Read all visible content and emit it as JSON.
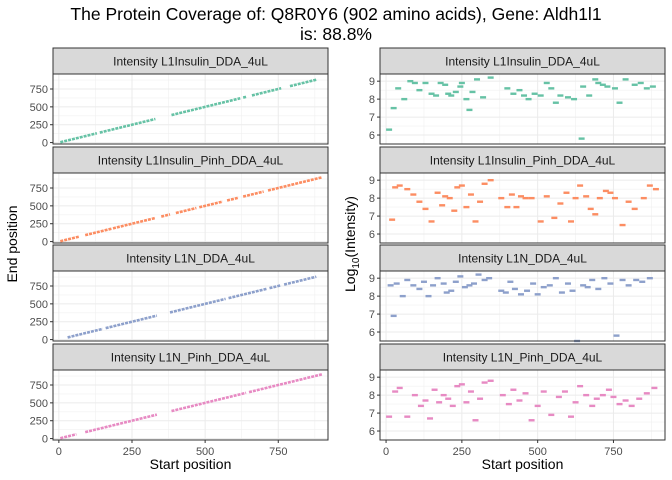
{
  "title": {
    "line1": "The Protein Coverage of: Q8R0Y6 (902 amino acids), Gene: Aldh1l1",
    "line2": "is: 88.8%"
  },
  "colors": [
    "#66c2a5",
    "#fc8d62",
    "#8da0cb",
    "#e78ac3"
  ],
  "chart_data": [
    {
      "type": "scatter",
      "panel": "left",
      "xlabel": "Start position",
      "ylabel": "End position",
      "xlim": [
        -20,
        920
      ],
      "ylim": [
        -20,
        960
      ],
      "xticks": [
        0,
        250,
        500,
        750
      ],
      "yticks": [
        0,
        250,
        500,
        750
      ],
      "grid": true,
      "facets": [
        {
          "strip": "Intensity L1Insulin_DDA_4uL",
          "segments": [
            [
              5,
              130
            ],
            [
              140,
              330
            ],
            [
              385,
              620
            ],
            [
              630,
              640
            ],
            [
              660,
              760
            ],
            [
              790,
              880
            ]
          ]
        },
        {
          "strip": "Intensity L1Insulin_Pinh_DDA_4uL",
          "segments": [
            [
              5,
              70
            ],
            [
              90,
              180
            ],
            [
              185,
              330
            ],
            [
              350,
              380
            ],
            [
              400,
              470
            ],
            [
              480,
              560
            ],
            [
              575,
              615
            ],
            [
              630,
              700
            ],
            [
              715,
              900
            ]
          ]
        },
        {
          "strip": "Intensity L1N_DDA_4uL",
          "segments": [
            [
              30,
              150
            ],
            [
              160,
              335
            ],
            [
              380,
              570
            ],
            [
              580,
              710
            ],
            [
              720,
              760
            ],
            [
              770,
              880
            ]
          ]
        },
        {
          "strip": "Intensity L1N_Pinh_DDA_4uL",
          "segments": [
            [
              5,
              60
            ],
            [
              90,
              335
            ],
            [
              385,
              640
            ],
            [
              650,
              900
            ]
          ]
        }
      ]
    },
    {
      "type": "scatter",
      "panel": "right",
      "xlabel": "Start position",
      "ylabel": "Log10(Intensity)",
      "ylabel_base": "Log",
      "ylabel_sub": "10",
      "ylabel_rest": "(Intensity)",
      "xlim": [
        -20,
        920
      ],
      "ylim": [
        5.5,
        9.4
      ],
      "xticks": [
        0,
        250,
        500,
        750
      ],
      "yticks": [
        6,
        7,
        8,
        9
      ],
      "grid": true,
      "facets": [
        {
          "strip": "Intensity L1Insulin_DDA_4uL",
          "points": [
            [
              10,
              6.3
            ],
            [
              25,
              7.5
            ],
            [
              40,
              8.6
            ],
            [
              60,
              8.0
            ],
            [
              80,
              9.0
            ],
            [
              95,
              8.9
            ],
            [
              110,
              8.5
            ],
            [
              130,
              8.9
            ],
            [
              150,
              8.3
            ],
            [
              165,
              8.2
            ],
            [
              180,
              8.9
            ],
            [
              195,
              8.8
            ],
            [
              205,
              8.3
            ],
            [
              215,
              8.2
            ],
            [
              230,
              8.4
            ],
            [
              245,
              8.7
            ],
            [
              250,
              8.9
            ],
            [
              265,
              8.0
            ],
            [
              275,
              7.4
            ],
            [
              285,
              8.4
            ],
            [
              300,
              9.1
            ],
            [
              320,
              8.1
            ],
            [
              345,
              9.2
            ],
            [
              400,
              8.6
            ],
            [
              420,
              8.3
            ],
            [
              440,
              8.5
            ],
            [
              455,
              8.2
            ],
            [
              470,
              8.0
            ],
            [
              490,
              8.3
            ],
            [
              510,
              8.2
            ],
            [
              530,
              8.9
            ],
            [
              545,
              8.6
            ],
            [
              560,
              7.8
            ],
            [
              575,
              8.2
            ],
            [
              600,
              8.1
            ],
            [
              620,
              8.0
            ],
            [
              645,
              5.8
            ],
            [
              650,
              8.7
            ],
            [
              670,
              8.2
            ],
            [
              690,
              9.1
            ],
            [
              700,
              8.9
            ],
            [
              715,
              8.8
            ],
            [
              730,
              8.7
            ],
            [
              755,
              8.6
            ],
            [
              770,
              7.8
            ],
            [
              790,
              9.1
            ],
            [
              820,
              8.8
            ],
            [
              840,
              8.9
            ],
            [
              860,
              8.6
            ],
            [
              880,
              8.7
            ]
          ]
        },
        {
          "strip": "Intensity L1Insulin_Pinh_DDA_4uL",
          "points": [
            [
              20,
              6.8
            ],
            [
              30,
              8.6
            ],
            [
              45,
              8.7
            ],
            [
              70,
              8.5
            ],
            [
              90,
              8.2
            ],
            [
              110,
              7.8
            ],
            [
              130,
              7.4
            ],
            [
              150,
              6.7
            ],
            [
              170,
              8.3
            ],
            [
              185,
              7.6
            ],
            [
              195,
              8.1
            ],
            [
              210,
              8.0
            ],
            [
              225,
              7.3
            ],
            [
              235,
              8.6
            ],
            [
              250,
              8.7
            ],
            [
              265,
              7.5
            ],
            [
              280,
              8.2
            ],
            [
              295,
              6.7
            ],
            [
              310,
              7.8
            ],
            [
              325,
              8.8
            ],
            [
              345,
              9.0
            ],
            [
              380,
              8.0
            ],
            [
              400,
              7.5
            ],
            [
              415,
              8.2
            ],
            [
              430,
              7.5
            ],
            [
              445,
              8.1
            ],
            [
              460,
              8.0
            ],
            [
              480,
              8.0
            ],
            [
              510,
              6.7
            ],
            [
              530,
              8.1
            ],
            [
              555,
              6.9
            ],
            [
              575,
              7.7
            ],
            [
              595,
              8.3
            ],
            [
              610,
              6.7
            ],
            [
              625,
              8.0
            ],
            [
              640,
              8.7
            ],
            [
              660,
              8.1
            ],
            [
              675,
              7.4
            ],
            [
              690,
              7.1
            ],
            [
              705,
              8.0
            ],
            [
              725,
              8.4
            ],
            [
              740,
              8.3
            ],
            [
              755,
              8.0
            ],
            [
              780,
              6.5
            ],
            [
              800,
              7.8
            ],
            [
              820,
              7.4
            ],
            [
              850,
              8.0
            ],
            [
              870,
              8.7
            ],
            [
              890,
              8.5
            ]
          ]
        },
        {
          "strip": "Intensity L1N_DDA_4uL",
          "points": [
            [
              15,
              8.6
            ],
            [
              25,
              6.9
            ],
            [
              35,
              8.7
            ],
            [
              55,
              8.0
            ],
            [
              70,
              8.9
            ],
            [
              90,
              8.6
            ],
            [
              110,
              8.4
            ],
            [
              125,
              8.8
            ],
            [
              140,
              8.0
            ],
            [
              155,
              8.6
            ],
            [
              170,
              9.0
            ],
            [
              190,
              8.7
            ],
            [
              200,
              8.2
            ],
            [
              215,
              8.3
            ],
            [
              230,
              8.8
            ],
            [
              245,
              9.1
            ],
            [
              260,
              8.5
            ],
            [
              275,
              8.6
            ],
            [
              290,
              8.7
            ],
            [
              305,
              9.2
            ],
            [
              325,
              8.9
            ],
            [
              340,
              9.0
            ],
            [
              380,
              8.3
            ],
            [
              395,
              8.2
            ],
            [
              410,
              8.8
            ],
            [
              425,
              8.4
            ],
            [
              445,
              8.1
            ],
            [
              465,
              8.3
            ],
            [
              485,
              8.7
            ],
            [
              500,
              8.1
            ],
            [
              520,
              8.5
            ],
            [
              540,
              8.6
            ],
            [
              560,
              9.0
            ],
            [
              580,
              8.2
            ],
            [
              600,
              8.7
            ],
            [
              615,
              8.3
            ],
            [
              630,
              5.5
            ],
            [
              650,
              8.6
            ],
            [
              665,
              8.5
            ],
            [
              680,
              8.9
            ],
            [
              700,
              8.4
            ],
            [
              720,
              9.0
            ],
            [
              740,
              8.7
            ],
            [
              760,
              5.8
            ],
            [
              780,
              8.9
            ],
            [
              800,
              8.6
            ],
            [
              825,
              8.9
            ],
            [
              845,
              8.8
            ],
            [
              870,
              9.0
            ]
          ]
        },
        {
          "strip": "Intensity L1N_Pinh_DDA_4uL",
          "points": [
            [
              10,
              6.8
            ],
            [
              30,
              8.2
            ],
            [
              45,
              8.4
            ],
            [
              70,
              6.8
            ],
            [
              95,
              8.0
            ],
            [
              115,
              7.4
            ],
            [
              130,
              7.7
            ],
            [
              145,
              6.7
            ],
            [
              160,
              8.3
            ],
            [
              175,
              7.6
            ],
            [
              190,
              8.0
            ],
            [
              205,
              7.8
            ],
            [
              220,
              7.4
            ],
            [
              235,
              8.5
            ],
            [
              250,
              8.6
            ],
            [
              265,
              7.6
            ],
            [
              280,
              8.2
            ],
            [
              295,
              6.6
            ],
            [
              310,
              7.8
            ],
            [
              325,
              8.7
            ],
            [
              345,
              8.8
            ],
            [
              385,
              8.0
            ],
            [
              405,
              7.5
            ],
            [
              420,
              8.3
            ],
            [
              440,
              7.7
            ],
            [
              460,
              8.1
            ],
            [
              480,
              6.6
            ],
            [
              500,
              7.4
            ],
            [
              520,
              8.2
            ],
            [
              545,
              6.9
            ],
            [
              570,
              7.9
            ],
            [
              590,
              8.2
            ],
            [
              610,
              6.8
            ],
            [
              625,
              7.6
            ],
            [
              640,
              8.5
            ],
            [
              660,
              8.0
            ],
            [
              680,
              7.4
            ],
            [
              695,
              7.8
            ],
            [
              715,
              8.0
            ],
            [
              735,
              8.3
            ],
            [
              750,
              7.9
            ],
            [
              770,
              7.5
            ],
            [
              790,
              7.7
            ],
            [
              810,
              7.4
            ],
            [
              835,
              7.8
            ],
            [
              860,
              8.1
            ],
            [
              885,
              8.4
            ]
          ]
        }
      ]
    }
  ]
}
